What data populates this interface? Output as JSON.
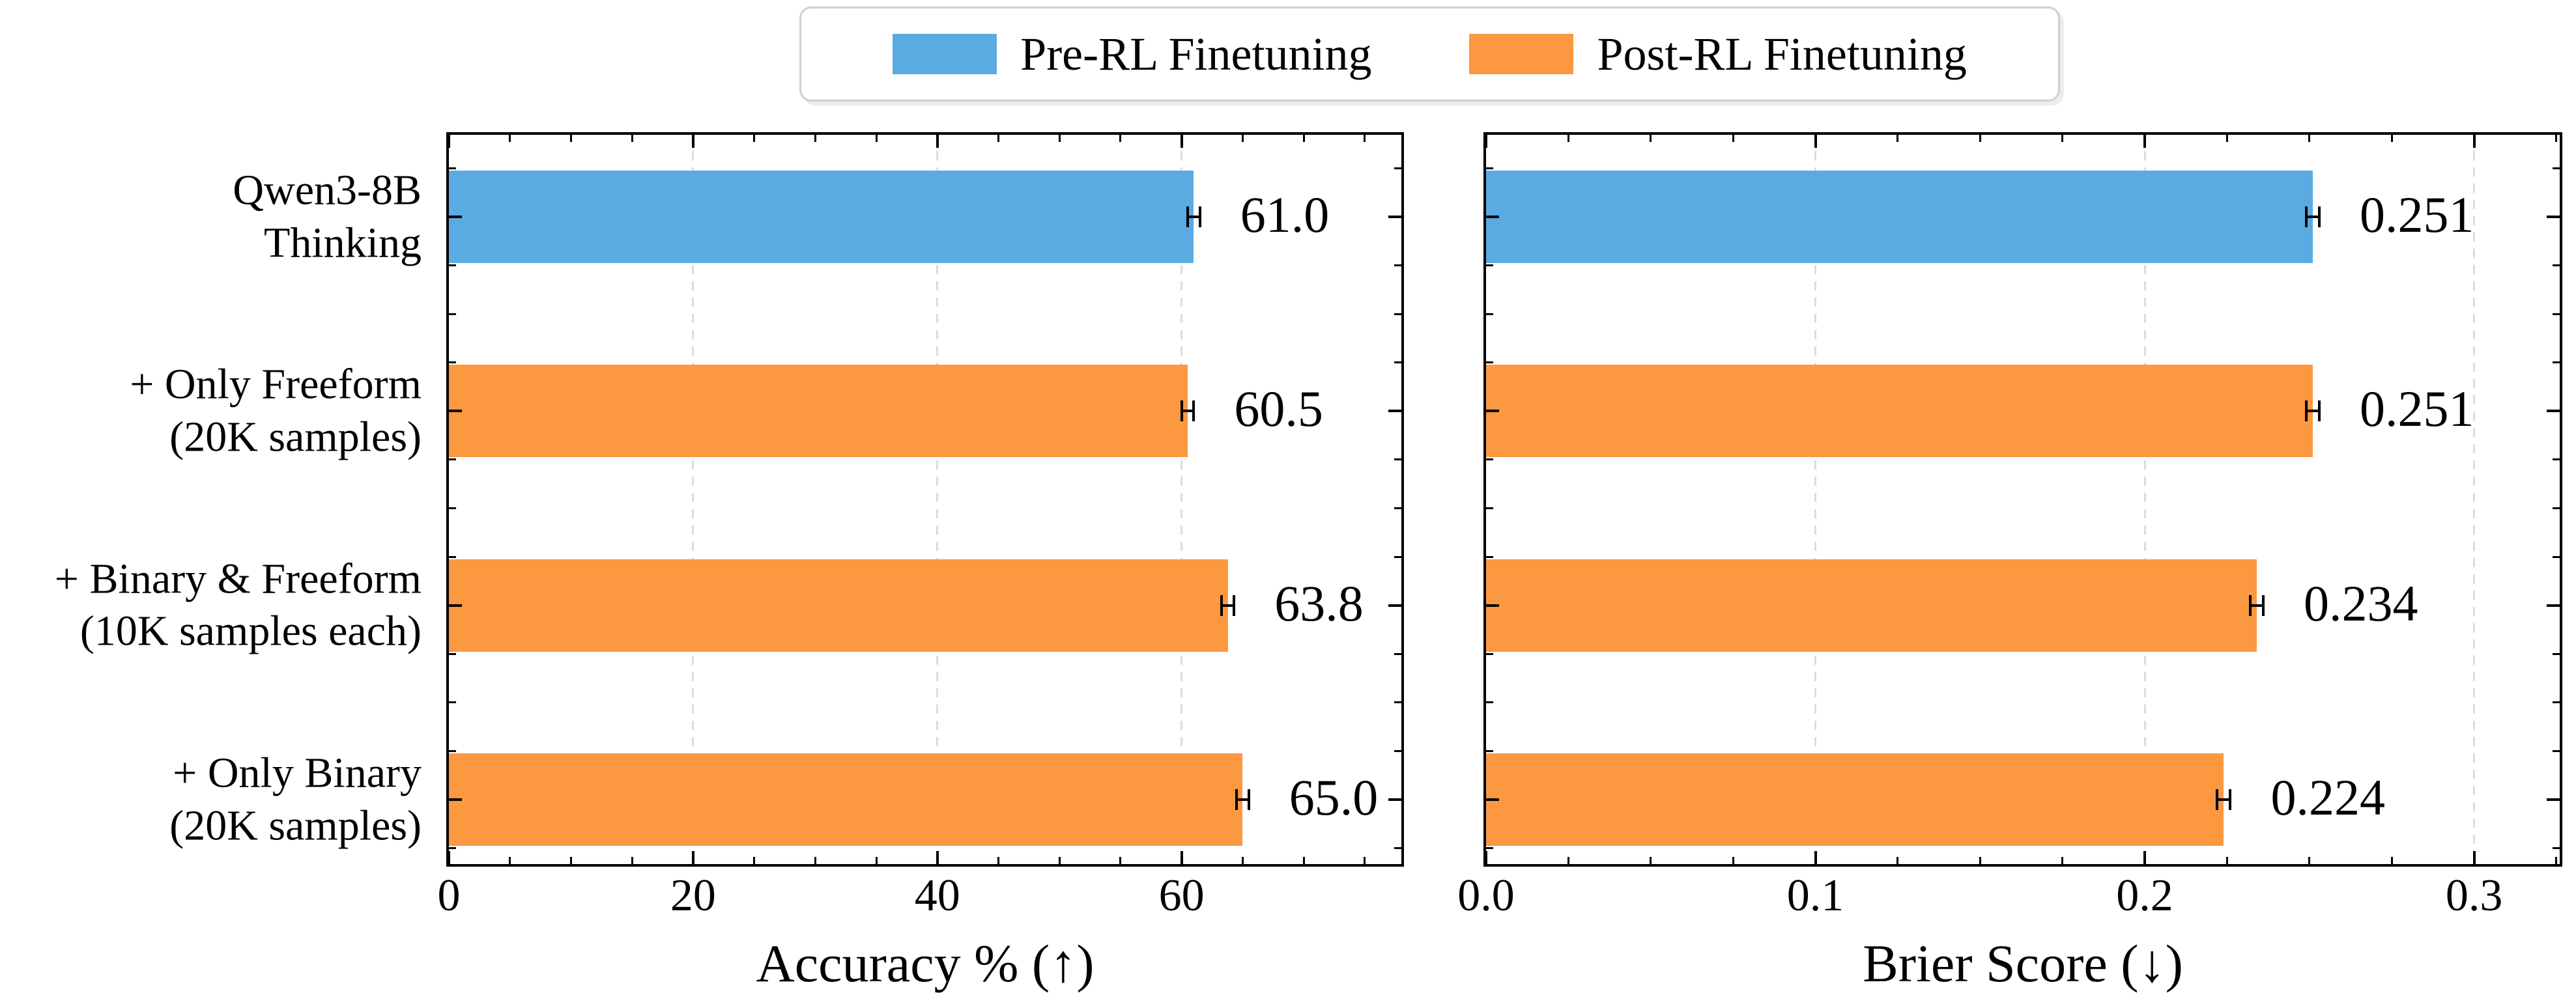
{
  "figure": {
    "background": "#FFFFFF",
    "legend": {
      "position": "top-center",
      "border_color": "#CFCFCF",
      "items": [
        {
          "label": "Pre-RL Finetuning",
          "color": "#5BABE2"
        },
        {
          "label": "Post-RL Finetuning",
          "color": "#FB9840"
        }
      ]
    },
    "colors": {
      "pre_rl": "#5BABE2",
      "post_rl": "#FB9840",
      "grid": "#DCDCDC",
      "axis": "#000000",
      "error_bar": "#000000",
      "text": "#000000"
    }
  },
  "chart_data": [
    {
      "type": "bar",
      "orientation": "horizontal",
      "title": "",
      "xlabel": "Accuracy % (↑)",
      "ylabel": "",
      "categories": [
        "Qwen3-8B\nThinking",
        "+ Only Freeform\n(20K samples)",
        "+ Binary & Freeform\n(10K samples each)",
        "+ Only Binary\n(20K samples)"
      ],
      "values": [
        61.0,
        60.5,
        63.8,
        65.0
      ],
      "value_labels": [
        "61.0",
        "60.5",
        "63.8",
        "65.0"
      ],
      "errors": [
        0.5,
        0.5,
        0.5,
        0.5
      ],
      "bar_colors": [
        "#5BABE2",
        "#FB9840",
        "#FB9840",
        "#FB9840"
      ],
      "series_of_bar": [
        "Pre-RL Finetuning",
        "Post-RL Finetuning",
        "Post-RL Finetuning",
        "Post-RL Finetuning"
      ],
      "xlim": [
        0,
        78
      ],
      "xticks": [
        0,
        20,
        40,
        60
      ],
      "xtick_labels": [
        "0",
        "20",
        "40",
        "60"
      ],
      "minor_tick_step": 5,
      "grid": "vertical dashed at major ticks"
    },
    {
      "type": "bar",
      "orientation": "horizontal",
      "title": "",
      "xlabel": "Brier Score (↓)",
      "ylabel": "",
      "categories": [
        "Qwen3-8B\nThinking",
        "+ Only Freeform\n(20K samples)",
        "+ Binary & Freeform\n(10K samples each)",
        "+ Only Binary\n(20K samples)"
      ],
      "values": [
        0.251,
        0.251,
        0.234,
        0.224
      ],
      "value_labels": [
        "0.251",
        "0.251",
        "0.234",
        "0.224"
      ],
      "errors": [
        0.002,
        0.002,
        0.002,
        0.002
      ],
      "bar_colors": [
        "#5BABE2",
        "#FB9840",
        "#FB9840",
        "#FB9840"
      ],
      "series_of_bar": [
        "Pre-RL Finetuning",
        "Post-RL Finetuning",
        "Post-RL Finetuning",
        "Post-RL Finetuning"
      ],
      "xlim": [
        0,
        0.326
      ],
      "xticks": [
        0,
        0.1,
        0.2,
        0.3
      ],
      "xtick_labels": [
        "0.0",
        "0.1",
        "0.2",
        "0.3"
      ],
      "minor_tick_step": 0.025,
      "grid": "vertical dashed at major ticks"
    }
  ]
}
